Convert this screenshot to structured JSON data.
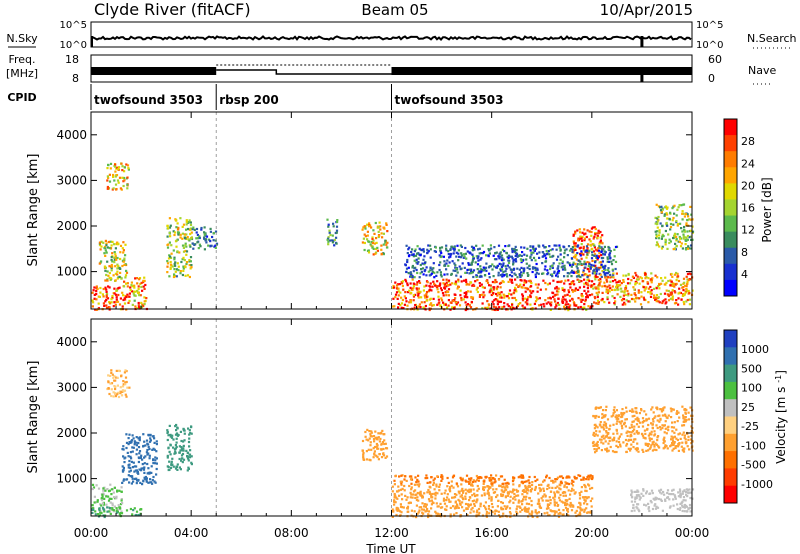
{
  "header": {
    "title": "Clyde River (fitACF)",
    "beam": "Beam 05",
    "date": "10/Apr/2015"
  },
  "sky_panel": {
    "left_label": "N.Sky",
    "left_ticks": [
      "10^5",
      "10^0"
    ],
    "right_ticks": [
      "10^5",
      "10^0"
    ],
    "right_label": "N.Search"
  },
  "freq_panel": {
    "left_label_1": "Freq.",
    "left_label_2": "[MHz]",
    "left_ticks": [
      "18",
      "8"
    ],
    "right_ticks": [
      "60",
      "0"
    ],
    "right_label": "Nave"
  },
  "cpid": {
    "label": "CPID",
    "segments": [
      {
        "name": "twofsound 3503",
        "start": 0,
        "end": 5
      },
      {
        "name": "rbsp 200",
        "start": 5,
        "end": 12
      },
      {
        "name": "twofsound 3503",
        "start": 12,
        "end": 24
      }
    ]
  },
  "chart_data": [
    {
      "type": "heatmap",
      "panel": "power",
      "ylabel": "Slant Range [km]",
      "xlabel": "Time UT",
      "x_ticks": [
        "00:00",
        "04:00",
        "08:00",
        "12:00",
        "16:00",
        "20:00",
        "00:00"
      ],
      "x_tick_hours": [
        0,
        4,
        8,
        12,
        16,
        20,
        24
      ],
      "xlim": [
        0,
        24
      ],
      "ylim": [
        180,
        4500
      ],
      "y_ticks": [
        1000,
        2000,
        3000,
        4000
      ],
      "colorbar": {
        "label": "Power [dB]",
        "ticks": [
          "28",
          "24",
          "20",
          "16",
          "12",
          "8",
          "4"
        ],
        "colors": [
          "#ff0000",
          "#ff4000",
          "#ff7c00",
          "#ffa500",
          "#e0d800",
          "#a4d430",
          "#5cba4c",
          "#3a8c5e",
          "#2a5aa8",
          "#1830d0",
          "#0000ff"
        ]
      },
      "scatter_regions": [
        {
          "x": [
            0.0,
            1.2
          ],
          "y": [
            180,
            700
          ],
          "level": 27
        },
        {
          "x": [
            1.2,
            2.2
          ],
          "y": [
            180,
            900
          ],
          "level": 22
        },
        {
          "x": [
            0.3,
            1.4
          ],
          "y": [
            800,
            1700
          ],
          "level": 17
        },
        {
          "x": [
            0.6,
            1.5
          ],
          "y": [
            2800,
            3400
          ],
          "level": 20
        },
        {
          "x": [
            3.0,
            4.0
          ],
          "y": [
            900,
            2200
          ],
          "level": 15
        },
        {
          "x": [
            4.0,
            5.0
          ],
          "y": [
            1500,
            2000
          ],
          "level": 7
        },
        {
          "x": [
            10.8,
            11.8
          ],
          "y": [
            1400,
            2100
          ],
          "level": 19
        },
        {
          "x": [
            9.4,
            9.8
          ],
          "y": [
            1600,
            2200
          ],
          "level": 9
        },
        {
          "x": [
            12.0,
            20.0
          ],
          "y": [
            180,
            850
          ],
          "level": 27
        },
        {
          "x": [
            19.2,
            20.4
          ],
          "y": [
            900,
            2000
          ],
          "level": 27
        },
        {
          "x": [
            12.5,
            21.0
          ],
          "y": [
            900,
            1600
          ],
          "level": 6
        },
        {
          "x": [
            20.0,
            24.0
          ],
          "y": [
            300,
            1000
          ],
          "level": 24
        },
        {
          "x": [
            22.5,
            24.0
          ],
          "y": [
            1500,
            2500
          ],
          "level": 14
        }
      ]
    },
    {
      "type": "heatmap",
      "panel": "velocity",
      "ylabel": "Slant Range [km]",
      "xlabel": "Time UT",
      "x_ticks": [
        "00:00",
        "04:00",
        "08:00",
        "12:00",
        "16:00",
        "20:00",
        "00:00"
      ],
      "x_tick_hours": [
        0,
        4,
        8,
        12,
        16,
        20,
        24
      ],
      "xlim": [
        0,
        24
      ],
      "ylim": [
        180,
        4500
      ],
      "y_ticks": [
        1000,
        2000,
        3000,
        4000
      ],
      "colorbar": {
        "label": "Velocity [m s^-1]",
        "ticks": [
          "1000",
          "500",
          "100",
          "25",
          "-25",
          "-100",
          "-500",
          "-1000"
        ],
        "colors": [
          "#2040c0",
          "#3070b0",
          "#3e9a80",
          "#4cc040",
          "#c0c0c0",
          "#ffd080",
          "#ffa030",
          "#ff7000",
          "#ff3c00",
          "#ff0000"
        ]
      },
      "scatter_regions": [
        {
          "x": [
            0.0,
            1.2
          ],
          "y": [
            300,
            900
          ],
          "level": 25
        },
        {
          "x": [
            0.0,
            2.0
          ],
          "y": [
            180,
            400
          ],
          "level": 100
        },
        {
          "x": [
            1.2,
            2.6
          ],
          "y": [
            900,
            2000
          ],
          "level": 700
        },
        {
          "x": [
            0.6,
            1.5
          ],
          "y": [
            2800,
            3400
          ],
          "level": -100
        },
        {
          "x": [
            3.0,
            4.0
          ],
          "y": [
            1200,
            2200
          ],
          "level": 300
        },
        {
          "x": [
            10.8,
            11.8
          ],
          "y": [
            1400,
            2100
          ],
          "level": -300
        },
        {
          "x": [
            12.0,
            20.0
          ],
          "y": [
            180,
            900
          ],
          "level": -200
        },
        {
          "x": [
            12.0,
            20.0
          ],
          "y": [
            900,
            1100
          ],
          "level": -600
        },
        {
          "x": [
            20.0,
            24.0
          ],
          "y": [
            1600,
            2600
          ],
          "level": -300
        },
        {
          "x": [
            21.5,
            24.0
          ],
          "y": [
            300,
            800
          ],
          "level": 0
        }
      ]
    }
  ]
}
